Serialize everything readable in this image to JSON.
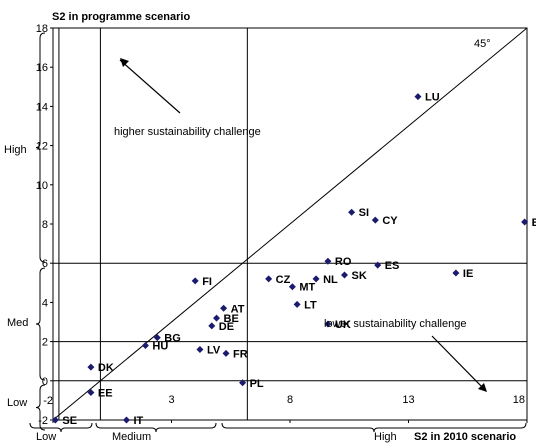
{
  "colors": {
    "marker": "#1a1a6e",
    "line": "#000000",
    "text": "#000000"
  },
  "chart_data": {
    "type": "scatter",
    "title": "",
    "ylabel": "S2 in programme scenario",
    "xlabel": "S2 in 2010 scenario",
    "xlim": [
      -2,
      18
    ],
    "ylim": [
      -2,
      18
    ],
    "x_ticks": [
      "-2",
      "3",
      "8",
      "13",
      "18"
    ],
    "x_tick_values": [
      -2,
      3,
      8,
      13,
      18
    ],
    "y_ticks": [
      "-2",
      "0",
      "2",
      "4",
      "6",
      "8",
      "10",
      "12",
      "14",
      "16",
      "18"
    ],
    "y_tick_values": [
      -2,
      0,
      2,
      4,
      6,
      8,
      10,
      12,
      14,
      16,
      18
    ],
    "grid": false,
    "diagonal_label": "45°",
    "reference_lines": {
      "vertical": [
        -1.75,
        0,
        6.2
      ],
      "horizontal": [
        0,
        2,
        6
      ]
    },
    "points": [
      {
        "label": "LU",
        "x": 13.4,
        "y": 14.5
      },
      {
        "label": "SI",
        "x": 10.6,
        "y": 8.6
      },
      {
        "label": "CY",
        "x": 11.6,
        "y": 8.2
      },
      {
        "label": "EL",
        "x": 17.9,
        "y": 8.1
      },
      {
        "label": "RO",
        "x": 9.6,
        "y": 6.1
      },
      {
        "label": "ES",
        "x": 11.7,
        "y": 5.9
      },
      {
        "label": "IE",
        "x": 15.0,
        "y": 5.5
      },
      {
        "label": "SK",
        "x": 10.3,
        "y": 5.4
      },
      {
        "label": "NL",
        "x": 9.1,
        "y": 5.2
      },
      {
        "label": "CZ",
        "x": 7.1,
        "y": 5.2
      },
      {
        "label": "FI",
        "x": 4.0,
        "y": 5.1
      },
      {
        "label": "MT",
        "x": 8.1,
        "y": 4.8
      },
      {
        "label": "LT",
        "x": 8.3,
        "y": 3.9
      },
      {
        "label": "AT",
        "x": 5.2,
        "y": 3.7
      },
      {
        "label": "BE",
        "x": 4.9,
        "y": 3.2
      },
      {
        "label": "DE",
        "x": 4.7,
        "y": 2.8
      },
      {
        "label": "UK",
        "x": 9.6,
        "y": 2.9
      },
      {
        "label": "BG",
        "x": 2.4,
        "y": 2.2
      },
      {
        "label": "HU",
        "x": 1.9,
        "y": 1.8
      },
      {
        "label": "LV",
        "x": 4.2,
        "y": 1.6
      },
      {
        "label": "FR",
        "x": 5.3,
        "y": 1.4
      },
      {
        "label": "DK",
        "x": -0.4,
        "y": 0.7
      },
      {
        "label": "PL",
        "x": 6.0,
        "y": -0.1
      },
      {
        "label": "EE",
        "x": -0.4,
        "y": -0.6
      },
      {
        "label": "SE",
        "x": -1.9,
        "y": -2.0
      },
      {
        "label": "IT",
        "x": 1.1,
        "y": -2.0
      }
    ],
    "annotations": {
      "higher": "higher sustainability challenge",
      "lower": "lower sustainability challenge"
    },
    "y_brackets": [
      "High",
      "Med",
      "Low"
    ],
    "x_brackets": [
      "Low",
      "Medium",
      "High"
    ]
  }
}
